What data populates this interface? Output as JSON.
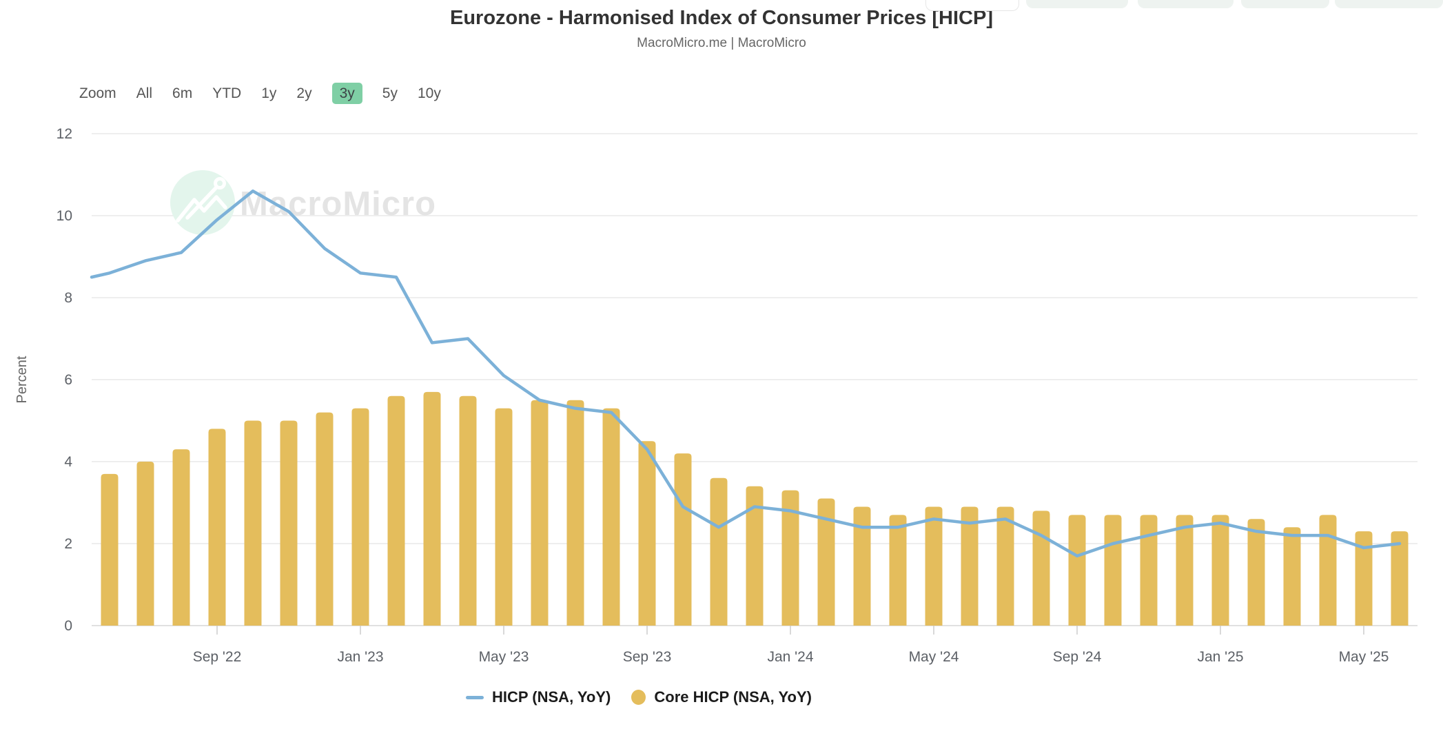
{
  "header": {
    "title": "Eurozone - Harmonised Index of Consumer Prices [HICP]",
    "subtitle": "MacroMicro.me | MacroMicro"
  },
  "toolbar": {
    "zoom_label": "Zoom",
    "ranges": [
      "All",
      "6m",
      "YTD",
      "1y",
      "2y",
      "3y",
      "5y",
      "10y"
    ],
    "active_range": "3y"
  },
  "watermark": {
    "text": "MacroMicro"
  },
  "legend": [
    {
      "label": "HICP (NSA, YoY)",
      "marker": "line",
      "color": "#7CB1D8"
    },
    {
      "label": "Core HICP (NSA, YoY)",
      "marker": "circle",
      "color": "#E4BD5C"
    }
  ],
  "colors": {
    "line": "#7CB1D8",
    "bar": "#E4BD5C",
    "active_button_green": "#7FCFA5",
    "grid": "#E8E8E8",
    "axis": "#D5D5D5",
    "tick": "#CCCCCC",
    "watermark_circle": "#E3F5EC"
  },
  "chart_data": {
    "type": "line+bar",
    "title": "Eurozone - Harmonised Index of Consumer Prices [HICP]",
    "ylabel": "Percent",
    "ylim": [
      0,
      12
    ],
    "yticks": [
      0,
      2,
      4,
      6,
      8,
      10,
      12
    ],
    "grid": "horizontal-only",
    "legend_position": "bottom-center",
    "months": [
      "2022-06",
      "2022-07",
      "2022-08",
      "2022-09",
      "2022-10",
      "2022-11",
      "2022-12",
      "2023-01",
      "2023-02",
      "2023-03",
      "2023-04",
      "2023-05",
      "2023-06",
      "2023-07",
      "2023-08",
      "2023-09",
      "2023-10",
      "2023-11",
      "2023-12",
      "2024-01",
      "2024-02",
      "2024-03",
      "2024-04",
      "2024-05",
      "2024-06",
      "2024-07",
      "2024-08",
      "2024-09",
      "2024-10",
      "2024-11",
      "2024-12",
      "2025-01",
      "2025-02",
      "2025-03",
      "2025-04",
      "2025-05",
      "2025-06"
    ],
    "x_ticks": [
      {
        "index": 3,
        "label": "Sep '22"
      },
      {
        "index": 7,
        "label": "Jan '23"
      },
      {
        "index": 11,
        "label": "May '23"
      },
      {
        "index": 15,
        "label": "Sep '23"
      },
      {
        "index": 19,
        "label": "Jan '24"
      },
      {
        "index": 23,
        "label": "May '24"
      },
      {
        "index": 27,
        "label": "Sep '24"
      },
      {
        "index": 31,
        "label": "Jan '25"
      },
      {
        "index": 35,
        "label": "May '25"
      }
    ],
    "series": [
      {
        "name": "HICP (NSA, YoY)",
        "type": "line",
        "color": "#7CB1D8",
        "values": [
          8.6,
          8.9,
          9.1,
          9.9,
          10.6,
          10.1,
          9.2,
          8.6,
          8.5,
          6.9,
          7.0,
          6.1,
          5.5,
          5.3,
          5.2,
          4.3,
          2.9,
          2.4,
          2.9,
          2.8,
          2.6,
          2.4,
          2.4,
          2.6,
          2.5,
          2.6,
          2.2,
          1.7,
          2.0,
          2.2,
          2.4,
          2.5,
          2.3,
          2.2,
          2.2,
          1.9,
          2.0
        ],
        "clipped_start_value_at_left_edge": 8.5
      },
      {
        "name": "Core HICP (NSA, YoY)",
        "type": "bar",
        "color": "#E4BD5C",
        "values": [
          3.7,
          4.0,
          4.3,
          4.8,
          5.0,
          5.0,
          5.2,
          5.3,
          5.6,
          5.7,
          5.6,
          5.3,
          5.5,
          5.5,
          5.3,
          4.5,
          4.2,
          3.6,
          3.4,
          3.3,
          3.1,
          2.9,
          2.7,
          2.9,
          2.9,
          2.9,
          2.8,
          2.7,
          2.7,
          2.7,
          2.7,
          2.7,
          2.6,
          2.4,
          2.7,
          2.3,
          2.3
        ]
      }
    ]
  }
}
